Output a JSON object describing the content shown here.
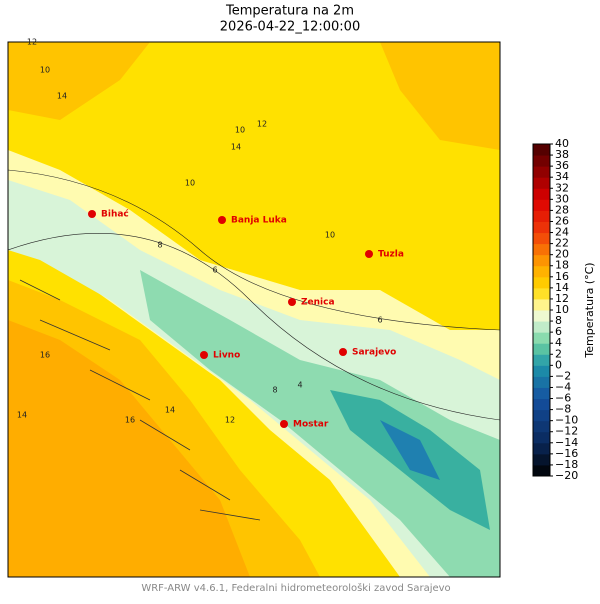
{
  "header": {
    "title": "Temperatura na 2m",
    "subtitle": "2026-04-22_12:00:00"
  },
  "cities": [
    "Bihać",
    "Banja Luka",
    "Tuzla",
    "Zenica",
    "Sarajevo",
    "Livno",
    "Mostar"
  ],
  "contour_labels": [
    12,
    10,
    14,
    10,
    12,
    14,
    10,
    8,
    6,
    4,
    16,
    14,
    12,
    8,
    10,
    6,
    14,
    16
  ],
  "colorbar": {
    "label": "Temperatura (°C)",
    "ticks": [
      {
        "value": -20,
        "label": "−20"
      },
      {
        "value": -18,
        "label": "−18"
      },
      {
        "value": -16,
        "label": "−16"
      },
      {
        "value": -14,
        "label": "−14"
      },
      {
        "value": -12,
        "label": "−12"
      },
      {
        "value": -10,
        "label": "−10"
      },
      {
        "value": -8,
        "label": "−8"
      },
      {
        "value": -6,
        "label": "−6"
      },
      {
        "value": -4,
        "label": "−4"
      },
      {
        "value": -2,
        "label": "−2"
      },
      0,
      2,
      4,
      6,
      8,
      10,
      12,
      14,
      16,
      18,
      20,
      22,
      24,
      26,
      28,
      30,
      32,
      34,
      36,
      38,
      40
    ]
  },
  "footer": "WRF-ARW v4.6.1, Federalni hidrometeorološki zavod Sarajevo"
}
